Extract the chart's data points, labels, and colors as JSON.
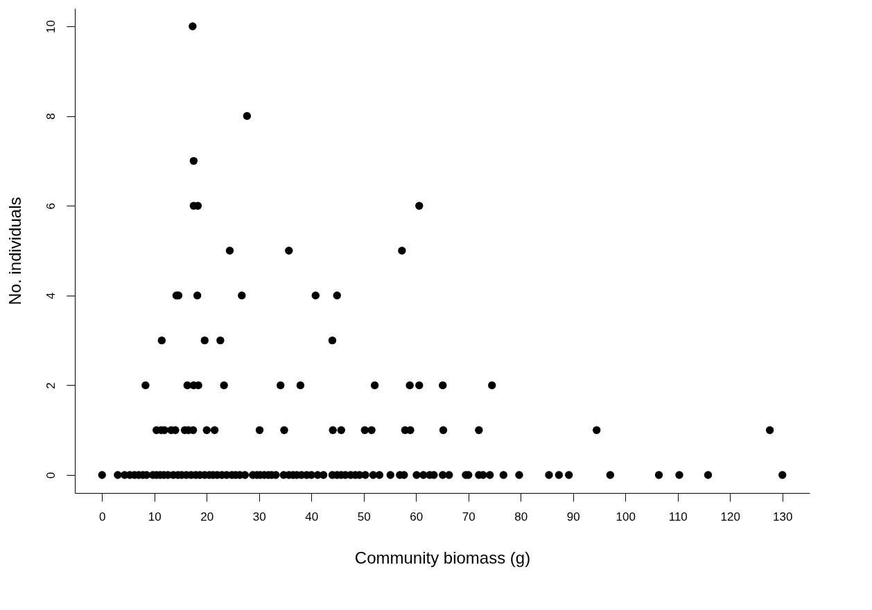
{
  "chart_data": {
    "type": "scatter",
    "xlabel": "Community biomass (g)",
    "ylabel": "No. individuals",
    "xlim": [
      -5.2,
      135.2
    ],
    "ylim": [
      -0.4,
      10.4
    ],
    "xticks": [
      0,
      10,
      20,
      30,
      40,
      50,
      60,
      70,
      80,
      90,
      100,
      110,
      120,
      130
    ],
    "yticks": [
      0,
      2,
      4,
      6,
      8,
      10
    ],
    "grid": false,
    "marker": "circle",
    "series": [
      {
        "color": "#000000",
        "x": [
          17.3,
          27.7,
          17.5,
          17.5,
          18.3,
          60.6,
          24.4,
          35.7,
          57.3,
          14.2,
          14.6,
          18.2,
          26.7,
          40.8,
          44.9,
          11.4,
          19.6,
          22.6,
          44.0,
          8.3,
          16.3,
          17.5,
          18.4,
          23.3,
          34.1,
          37.9,
          52.1,
          58.8,
          60.6,
          65.1,
          74.5,
          10.4,
          11.3,
          11.9,
          13.2,
          14.0,
          15.8,
          16.5,
          17.4,
          20.0,
          21.5,
          30.1,
          34.8,
          44.1,
          45.7,
          50.2,
          51.5,
          57.9,
          58.9,
          65.2,
          72.0,
          94.5,
          127.6,
          0.0,
          3.0,
          4.3,
          5.3,
          6.2,
          7.0,
          7.8,
          8.5,
          9.7,
          10.4,
          11.1,
          11.8,
          12.6,
          13.6,
          14.5,
          15.2,
          16.1,
          17.0,
          17.9,
          18.7,
          19.6,
          20.5,
          21.2,
          22.0,
          22.9,
          23.8,
          24.8,
          25.5,
          26.3,
          27.3,
          28.8,
          29.6,
          30.2,
          31.0,
          31.8,
          32.4,
          33.2,
          34.7,
          35.7,
          36.5,
          37.2,
          38.1,
          39.1,
          40.0,
          41.2,
          42.3,
          44.0,
          44.9,
          45.7,
          46.5,
          47.5,
          48.4,
          49.2,
          50.3,
          51.8,
          53.0,
          55.1,
          56.9,
          57.7,
          60.1,
          61.4,
          62.6,
          63.4,
          65.1,
          66.3,
          69.5,
          70.0,
          72.0,
          72.8,
          74.1,
          76.7,
          79.7,
          85.4,
          87.3,
          89.2,
          97.1,
          106.4,
          110.3,
          115.8,
          130.0
        ],
        "values": [
          10,
          8,
          7,
          6,
          6,
          6,
          5,
          5,
          5,
          4,
          4,
          4,
          4,
          4,
          4,
          3,
          3,
          3,
          3,
          2,
          2,
          2,
          2,
          2,
          2,
          2,
          2,
          2,
          2,
          2,
          2,
          1,
          1,
          1,
          1,
          1,
          1,
          1,
          1,
          1,
          1,
          1,
          1,
          1,
          1,
          1,
          1,
          1,
          1,
          1,
          1,
          1,
          1,
          0,
          0,
          0,
          0,
          0,
          0,
          0,
          0,
          0,
          0,
          0,
          0,
          0,
          0,
          0,
          0,
          0,
          0,
          0,
          0,
          0,
          0,
          0,
          0,
          0,
          0,
          0,
          0,
          0,
          0,
          0,
          0,
          0,
          0,
          0,
          0,
          0,
          0,
          0,
          0,
          0,
          0,
          0,
          0,
          0,
          0,
          0,
          0,
          0,
          0,
          0,
          0,
          0,
          0,
          0,
          0,
          0,
          0,
          0,
          0,
          0,
          0,
          0,
          0,
          0,
          0,
          0,
          0,
          0,
          0,
          0,
          0,
          0,
          0,
          0,
          0,
          0,
          0,
          0,
          0
        ]
      }
    ]
  }
}
